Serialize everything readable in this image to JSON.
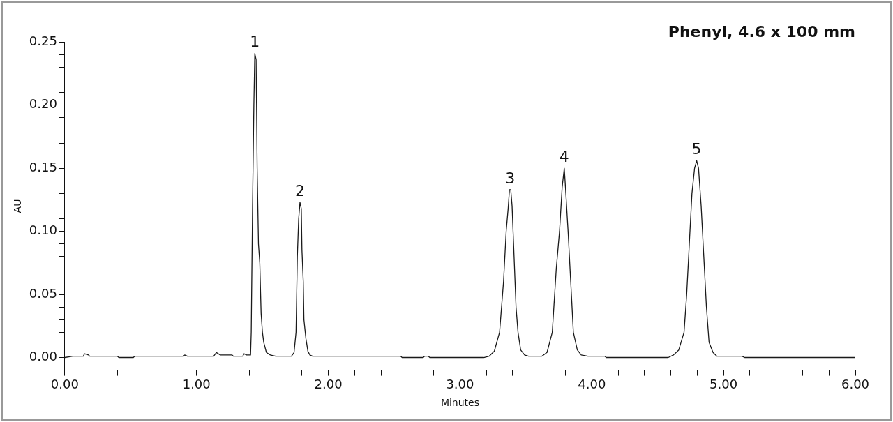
{
  "chart_data": {
    "type": "line",
    "title": "Phenyl, 4.6 x 100 mm",
    "xlabel": "Minutes",
    "ylabel": "AU",
    "xlim": [
      0,
      6
    ],
    "ylim": [
      -0.01,
      0.25
    ],
    "xticks": [
      {
        "value": 0,
        "label": "0.00"
      },
      {
        "value": 0.2,
        "label": null
      },
      {
        "value": 0.4,
        "label": null
      },
      {
        "value": 0.6,
        "label": null
      },
      {
        "value": 0.8,
        "label": null
      },
      {
        "value": 1,
        "label": "1.00"
      },
      {
        "value": 1.2,
        "label": null
      },
      {
        "value": 1.4,
        "label": null
      },
      {
        "value": 1.6,
        "label": null
      },
      {
        "value": 1.8,
        "label": null
      },
      {
        "value": 2,
        "label": "2.00"
      },
      {
        "value": 2.2,
        "label": null
      },
      {
        "value": 2.4,
        "label": null
      },
      {
        "value": 2.6,
        "label": null
      },
      {
        "value": 2.8,
        "label": null
      },
      {
        "value": 3,
        "label": "3.00"
      },
      {
        "value": 3.2,
        "label": null
      },
      {
        "value": 3.4,
        "label": null
      },
      {
        "value": 3.6,
        "label": null
      },
      {
        "value": 3.8,
        "label": null
      },
      {
        "value": 4,
        "label": "4.00"
      },
      {
        "value": 4.2,
        "label": null
      },
      {
        "value": 4.4,
        "label": null
      },
      {
        "value": 4.6,
        "label": null
      },
      {
        "value": 4.8,
        "label": null
      },
      {
        "value": 5,
        "label": "5.00"
      },
      {
        "value": 5.2,
        "label": null
      },
      {
        "value": 5.4,
        "label": null
      },
      {
        "value": 5.6,
        "label": null
      },
      {
        "value": 5.8,
        "label": null
      },
      {
        "value": 6,
        "label": "6.00"
      }
    ],
    "yticks": [
      {
        "value": -0.01,
        "label": null
      },
      {
        "value": 0,
        "label": "0.00"
      },
      {
        "value": 0.01,
        "label": null
      },
      {
        "value": 0.02,
        "label": null
      },
      {
        "value": 0.03,
        "label": null
      },
      {
        "value": 0.04,
        "label": null
      },
      {
        "value": 0.05,
        "label": "0.05"
      },
      {
        "value": 0.06,
        "label": null
      },
      {
        "value": 0.07,
        "label": null
      },
      {
        "value": 0.08,
        "label": null
      },
      {
        "value": 0.09,
        "label": null
      },
      {
        "value": 0.1,
        "label": "0.10"
      },
      {
        "value": 0.11,
        "label": null
      },
      {
        "value": 0.12,
        "label": null
      },
      {
        "value": 0.13,
        "label": null
      },
      {
        "value": 0.14,
        "label": null
      },
      {
        "value": 0.15,
        "label": "0.15"
      },
      {
        "value": 0.16,
        "label": null
      },
      {
        "value": 0.17,
        "label": null
      },
      {
        "value": 0.18,
        "label": null
      },
      {
        "value": 0.19,
        "label": null
      },
      {
        "value": 0.2,
        "label": "0.20"
      },
      {
        "value": 0.21,
        "label": null
      },
      {
        "value": 0.22,
        "label": null
      },
      {
        "value": 0.23,
        "label": null
      },
      {
        "value": 0.24,
        "label": null
      },
      {
        "value": 0.25,
        "label": "0.25"
      }
    ],
    "grid": false,
    "legend": false,
    "marker": "none",
    "line_style": "solid",
    "annotations": [
      {
        "text": "1",
        "x": 1.442,
        "y": 0.241
      },
      {
        "text": "2",
        "x": 1.785,
        "y": 0.123
      },
      {
        "text": "3",
        "x": 3.38,
        "y": 0.133
      },
      {
        "text": "4",
        "x": 3.791,
        "y": 0.15
      },
      {
        "text": "5",
        "x": 4.796,
        "y": 0.156
      }
    ],
    "series": [
      {
        "color": "#1a1a1a",
        "x": [
          0,
          0.06,
          0.14,
          0.15,
          0.18,
          0.19,
          0.4,
          0.41,
          0.52,
          0.53,
          0.9,
          0.91,
          0.93,
          1.13,
          1.15,
          1.18,
          1.27,
          1.28,
          1.35,
          1.36,
          1.38,
          1.41,
          1.415,
          1.425,
          1.435,
          1.442,
          1.452,
          1.46,
          1.47,
          1.48,
          1.49,
          1.5,
          1.51,
          1.53,
          1.56,
          1.6,
          1.72,
          1.74,
          1.755,
          1.765,
          1.775,
          1.785,
          1.795,
          1.8,
          1.81,
          1.815,
          1.83,
          1.845,
          1.86,
          1.88,
          2.55,
          2.56,
          2.72,
          2.73,
          2.76,
          2.77,
          3.18,
          3.22,
          3.26,
          3.3,
          3.33,
          3.35,
          3.365,
          3.375,
          3.385,
          3.395,
          3.41,
          3.425,
          3.44,
          3.46,
          3.49,
          3.52,
          3.62,
          3.66,
          3.7,
          3.73,
          3.755,
          3.775,
          3.791,
          3.8,
          3.82,
          3.84,
          3.86,
          3.89,
          3.92,
          3.97,
          4.1,
          4.11,
          4.58,
          4.62,
          4.66,
          4.7,
          4.72,
          4.74,
          4.76,
          4.78,
          4.796,
          4.81,
          4.83,
          4.85,
          4.87,
          4.89,
          4.92,
          4.95,
          5.14,
          5.16,
          6
        ],
        "values": [
          0,
          0.001,
          0.001,
          0.003,
          0.002,
          0.001,
          0.001,
          0,
          0,
          0.001,
          0.001,
          0.002,
          0.001,
          0.001,
          0.004,
          0.002,
          0.002,
          0.001,
          0.001,
          0.003,
          0.002,
          0.002,
          0.02,
          0.12,
          0.2,
          0.241,
          0.236,
          0.15,
          0.09,
          0.075,
          0.035,
          0.02,
          0.012,
          0.004,
          0.002,
          0.001,
          0.001,
          0.004,
          0.02,
          0.08,
          0.11,
          0.123,
          0.118,
          0.085,
          0.06,
          0.03,
          0.015,
          0.005,
          0.002,
          0.001,
          0.001,
          0,
          0,
          0.001,
          0.001,
          0,
          0,
          0.001,
          0.005,
          0.02,
          0.06,
          0.1,
          0.118,
          0.133,
          0.133,
          0.12,
          0.08,
          0.04,
          0.02,
          0.006,
          0.002,
          0.001,
          0.001,
          0.004,
          0.02,
          0.07,
          0.1,
          0.135,
          0.15,
          0.135,
          0.1,
          0.06,
          0.02,
          0.006,
          0.002,
          0.001,
          0.001,
          0,
          0,
          0.002,
          0.006,
          0.02,
          0.05,
          0.09,
          0.13,
          0.15,
          0.156,
          0.15,
          0.12,
          0.08,
          0.04,
          0.012,
          0.004,
          0.001,
          0.001,
          0,
          0
        ]
      }
    ]
  }
}
